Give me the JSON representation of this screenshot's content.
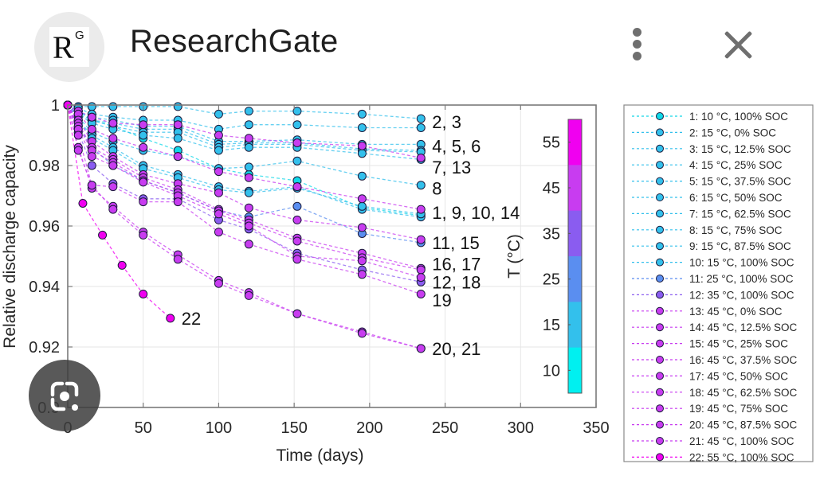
{
  "header": {
    "logo_main": "R",
    "logo_sup": "G",
    "site_title": "ResearchGate",
    "menu_icon": "more-vert-icon",
    "close_icon": "close-icon"
  },
  "overlay": {
    "lens_icon": "google-lens-icon"
  },
  "chart_data": {
    "type": "line",
    "title": "",
    "xlabel": "Time (days)",
    "ylabel": "Relative discharge capacity",
    "xlim": [
      0,
      350
    ],
    "ylim": [
      0.9,
      1.0
    ],
    "xticks": [
      0,
      50,
      100,
      150,
      200,
      250,
      300,
      350
    ],
    "yticks": [
      0.9,
      0.92,
      0.94,
      0.96,
      0.98,
      1
    ],
    "ytick_labels": [
      "0.9",
      "0.92",
      "0.94",
      "0.96",
      "0.98",
      "1"
    ],
    "grid": true,
    "legend_position": "outside-right",
    "colorbar": {
      "label": "T (°C)",
      "tick_labels": [
        "10",
        "15",
        "25",
        "35",
        "45",
        "55"
      ],
      "segments": [
        {
          "temp": 10,
          "color": "#00f0f0"
        },
        {
          "temp": 15,
          "color": "#33c0ec"
        },
        {
          "temp": 25,
          "color": "#5a8ef0"
        },
        {
          "temp": 35,
          "color": "#8a5cf0"
        },
        {
          "temp": 45,
          "color": "#c83cf0"
        },
        {
          "temp": 55,
          "color": "#f000f0"
        }
      ]
    },
    "annotations": [
      {
        "text": "2, 3",
        "x": 234,
        "y": 0.9945
      },
      {
        "text": "4, 5, 6",
        "x": 234,
        "y": 0.9865
      },
      {
        "text": "7, 13",
        "x": 234,
        "y": 0.9795
      },
      {
        "text": "8",
        "x": 234,
        "y": 0.9725
      },
      {
        "text": "1, 9, 10, 14",
        "x": 234,
        "y": 0.9645
      },
      {
        "text": "11, 15",
        "x": 234,
        "y": 0.9545
      },
      {
        "text": "16, 17",
        "x": 234,
        "y": 0.9475
      },
      {
        "text": "12, 18",
        "x": 234,
        "y": 0.9415
      },
      {
        "text": "19",
        "x": 234,
        "y": 0.9355
      },
      {
        "text": "20, 21",
        "x": 234,
        "y": 0.9195
      },
      {
        "text": "22",
        "x": 68,
        "y": 0.9295
      }
    ],
    "series": [
      {
        "name": "1: 10 °C, 100% SOC",
        "color": "#10d8e8",
        "x": [
          0,
          7,
          16,
          30,
          50,
          73,
          100,
          120,
          152,
          195,
          234
        ],
        "y": [
          1.0,
          0.998,
          0.995,
          0.993,
          0.989,
          0.985,
          0.979,
          0.977,
          0.975,
          0.966,
          0.9635
        ]
      },
      {
        "name": "2: 15 °C, 0% SOC",
        "color": "#33c0ec",
        "x": [
          0,
          7,
          16,
          30,
          50,
          73,
          100,
          120,
          152,
          195,
          234
        ],
        "y": [
          1.0,
          0.9995,
          0.9995,
          0.9995,
          0.9995,
          0.9995,
          0.997,
          0.998,
          0.998,
          0.997,
          0.9955
        ]
      },
      {
        "name": "3: 15 °C, 12.5% SOC",
        "color": "#33c0ec",
        "x": [
          0,
          7,
          16,
          30,
          50,
          73,
          100,
          120,
          152,
          195,
          234
        ],
        "y": [
          1.0,
          0.999,
          0.997,
          0.996,
          0.995,
          0.995,
          0.992,
          0.9935,
          0.9935,
          0.9925,
          0.9925
        ]
      },
      {
        "name": "4: 15 °C, 25% SOC",
        "color": "#33c0ec",
        "x": [
          0,
          7,
          16,
          30,
          50,
          73,
          100,
          120,
          152,
          195,
          234
        ],
        "y": [
          1.0,
          0.998,
          0.996,
          0.995,
          0.993,
          0.993,
          0.988,
          0.988,
          0.9885,
          0.987,
          0.987
        ]
      },
      {
        "name": "5: 15 °C, 37.5% SOC",
        "color": "#33c0ec",
        "x": [
          0,
          7,
          16,
          30,
          50,
          73,
          100,
          120,
          152,
          195,
          234
        ],
        "y": [
          1.0,
          0.998,
          0.995,
          0.994,
          0.992,
          0.992,
          0.987,
          0.9875,
          0.9875,
          0.9855,
          0.985
        ]
      },
      {
        "name": "6: 15 °C, 50% SOC",
        "color": "#33c0ec",
        "x": [
          0,
          7,
          16,
          30,
          50,
          73,
          100,
          120,
          152,
          195,
          234
        ],
        "y": [
          1.0,
          0.997,
          0.995,
          0.993,
          0.991,
          0.991,
          0.986,
          0.987,
          0.987,
          0.985,
          0.9845
        ]
      },
      {
        "name": "7: 15 °C, 62.5% SOC",
        "color": "#33c0ec",
        "x": [
          0,
          7,
          16,
          30,
          50,
          73,
          100,
          120,
          152,
          195,
          234
        ],
        "y": [
          1.0,
          0.997,
          0.994,
          0.992,
          0.99,
          0.989,
          0.985,
          0.986,
          0.986,
          0.984,
          0.982
        ]
      },
      {
        "name": "8: 15 °C, 75% SOC",
        "color": "#33c0ec",
        "x": [
          0,
          7,
          16,
          30,
          50,
          73,
          100,
          120,
          152,
          195,
          234
        ],
        "y": [
          1.0,
          0.996,
          0.991,
          0.988,
          0.985,
          0.983,
          0.979,
          0.9795,
          0.9815,
          0.9765,
          0.9735
        ]
      },
      {
        "name": "9: 15 °C, 87.5% SOC",
        "color": "#33c0ec",
        "x": [
          0,
          7,
          16,
          30,
          50,
          73,
          100,
          120,
          152,
          195,
          234
        ],
        "y": [
          1.0,
          0.995,
          0.99,
          0.986,
          0.98,
          0.977,
          0.973,
          0.9715,
          0.973,
          0.9655,
          0.963
        ]
      },
      {
        "name": "10: 15 °C, 100% SOC",
        "color": "#33c0ec",
        "x": [
          0,
          7,
          16,
          30,
          50,
          73,
          100,
          120,
          152,
          195,
          234
        ],
        "y": [
          1.0,
          0.995,
          0.989,
          0.985,
          0.979,
          0.976,
          0.972,
          0.971,
          0.9725,
          0.9665,
          0.964
        ]
      },
      {
        "name": "11: 25 °C, 100% SOC",
        "color": "#5a8ef0",
        "x": [
          0,
          7,
          16,
          30,
          50,
          73,
          100,
          120,
          152,
          195,
          234
        ],
        "y": [
          1.0,
          0.993,
          0.986,
          0.98,
          0.975,
          0.971,
          0.965,
          0.963,
          0.9665,
          0.9575,
          0.9545
        ]
      },
      {
        "name": "12: 35 °C, 100% SOC",
        "color": "#8a5cf0",
        "x": [
          0,
          7,
          16,
          30,
          50,
          73,
          100,
          120,
          152,
          195,
          234
        ],
        "y": [
          1.0,
          0.991,
          0.98,
          0.974,
          0.969,
          0.969,
          0.962,
          0.959,
          0.951,
          0.9455,
          0.9415
        ]
      },
      {
        "name": "13: 45 °C, 0% SOC",
        "color": "#c83cf0",
        "x": [
          0,
          7,
          16,
          30,
          50,
          73,
          100,
          120,
          152,
          195,
          234
        ],
        "y": [
          1.0,
          0.998,
          0.996,
          0.994,
          0.9935,
          0.9935,
          0.99,
          0.989,
          0.9875,
          0.9865,
          0.9825
        ]
      },
      {
        "name": "14: 45 °C, 12.5% SOC",
        "color": "#c83cf0",
        "x": [
          0,
          7,
          16,
          30,
          50,
          73,
          100,
          120,
          152,
          195,
          234
        ],
        "y": [
          1.0,
          0.997,
          0.992,
          0.989,
          0.986,
          0.983,
          0.978,
          0.976,
          0.973,
          0.969,
          0.9655
        ]
      },
      {
        "name": "15: 45 °C, 25% SOC",
        "color": "#c83cf0",
        "x": [
          0,
          7,
          16,
          30,
          50,
          73,
          100,
          120,
          152,
          195,
          234
        ],
        "y": [
          1.0,
          0.995,
          0.988,
          0.983,
          0.977,
          0.974,
          0.971,
          0.966,
          0.962,
          0.9595,
          0.9555
        ]
      },
      {
        "name": "16: 45 °C, 37.5% SOC",
        "color": "#c83cf0",
        "x": [
          0,
          7,
          16,
          30,
          50,
          73,
          100,
          120,
          152,
          195,
          234
        ],
        "y": [
          1.0,
          0.994,
          0.986,
          0.982,
          0.976,
          0.972,
          0.9655,
          0.962,
          0.956,
          0.951,
          0.946
        ]
      },
      {
        "name": "17: 45 °C, 50% SOC",
        "color": "#c83cf0",
        "x": [
          0,
          7,
          16,
          30,
          50,
          73,
          100,
          120,
          152,
          195,
          234
        ],
        "y": [
          1.0,
          0.993,
          0.985,
          0.981,
          0.975,
          0.971,
          0.965,
          0.961,
          0.955,
          0.9495,
          0.9455
        ]
      },
      {
        "name": "18: 45 °C, 62.5% SOC",
        "color": "#c83cf0",
        "x": [
          0,
          7,
          16,
          30,
          50,
          73,
          100,
          120,
          152,
          195,
          234
        ],
        "y": [
          1.0,
          0.992,
          0.983,
          0.98,
          0.9745,
          0.97,
          0.964,
          0.96,
          0.95,
          0.9485,
          0.943
        ]
      },
      {
        "name": "19: 45 °C, 75% SOC",
        "color": "#c83cf0",
        "x": [
          0,
          7,
          16,
          30,
          50,
          73,
          100,
          120,
          152,
          195,
          234
        ],
        "y": [
          1.0,
          0.99,
          0.9735,
          0.973,
          0.968,
          0.968,
          0.958,
          0.954,
          0.949,
          0.944,
          0.9375
        ]
      },
      {
        "name": "20: 45 °C, 87.5% SOC",
        "color": "#c83cf0",
        "x": [
          0,
          7,
          16,
          30,
          50,
          73,
          100,
          120,
          152,
          195,
          234
        ],
        "y": [
          1.0,
          0.986,
          0.9725,
          0.9665,
          0.958,
          0.9505,
          0.942,
          0.938,
          0.931,
          0.925,
          0.9195
        ]
      },
      {
        "name": "21: 45 °C, 100% SOC",
        "color": "#c83cf0",
        "x": [
          0,
          7,
          16,
          30,
          50,
          73,
          100,
          120,
          152,
          195,
          234
        ],
        "y": [
          1.0,
          0.985,
          0.9735,
          0.9655,
          0.957,
          0.949,
          0.941,
          0.937,
          0.931,
          0.9245,
          0.9195
        ]
      },
      {
        "name": "22: 55 °C, 100% SOC",
        "color": "#f000f0",
        "x": [
          0,
          10,
          23,
          36,
          50,
          68
        ],
        "y": [
          1.0,
          0.9675,
          0.957,
          0.947,
          0.9375,
          0.9295
        ]
      }
    ]
  }
}
